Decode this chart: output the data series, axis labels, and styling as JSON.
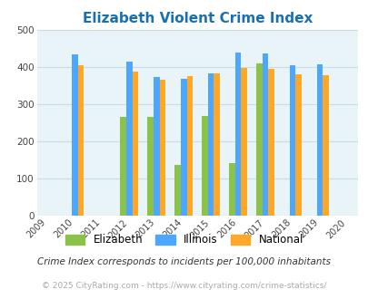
{
  "title": "Elizabeth Violent Crime Index",
  "title_color": "#1a6faf",
  "years": [
    2009,
    2010,
    2011,
    2012,
    2013,
    2014,
    2015,
    2016,
    2017,
    2018,
    2019,
    2020
  ],
  "bar_years": [
    2010,
    2012,
    2013,
    2014,
    2015,
    2016,
    2017,
    2018,
    2019
  ],
  "elizabeth": [
    0,
    265,
    265,
    135,
    268,
    140,
    410,
    0,
    0
  ],
  "illinois": [
    435,
    415,
    372,
    368,
    383,
    438,
    437,
    405,
    408
  ],
  "national": [
    405,
    387,
    365,
    375,
    383,
    397,
    394,
    380,
    379
  ],
  "color_elizabeth": "#8bc34a",
  "color_illinois": "#4da6ff",
  "color_national": "#ffa726",
  "ylim": [
    0,
    500
  ],
  "yticks": [
    0,
    100,
    200,
    300,
    400,
    500
  ],
  "bg_color": "#e8f4f8",
  "grid_color": "#c8dde8",
  "footnote1": "Crime Index corresponds to incidents per 100,000 inhabitants",
  "footnote2": "© 2025 CityRating.com - https://www.cityrating.com/crime-statistics/",
  "bar_width": 0.22
}
